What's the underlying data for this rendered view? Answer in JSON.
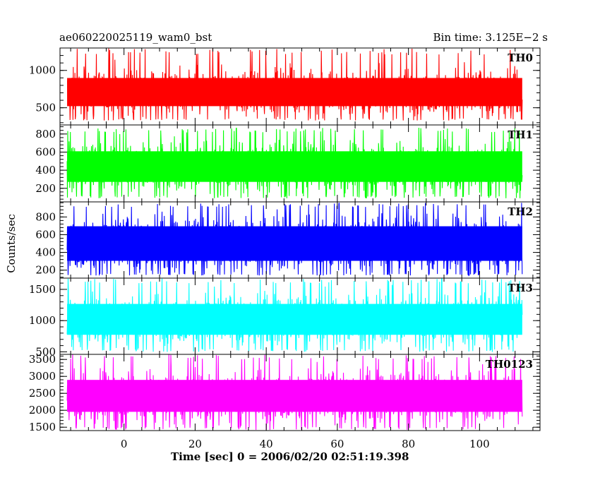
{
  "header": {
    "title_left": "ae060220025119_wam0_bst",
    "title_right": "Bin time: 3.125E−2 s"
  },
  "chart_data": {
    "type": "line",
    "xlabel": "Time [sec] 0 = 2006/02/20 02:51:19.398",
    "ylabel": "Counts/sec",
    "xlim": [
      -18,
      117
    ],
    "x_data_range": [
      -16,
      112
    ],
    "x_ticks": [
      0,
      20,
      40,
      60,
      80,
      100
    ],
    "panels": [
      {
        "name": "TH0",
        "color": "#ff0000",
        "ylim": [
          270,
          1300
        ],
        "yticks": [
          500,
          1000
        ],
        "band_min": 330,
        "band_max": 1300,
        "typical_low": 420,
        "typical_high": 1000
      },
      {
        "name": "TH1",
        "color": "#00ff00",
        "ylim": [
          50,
          900
        ],
        "yticks": [
          200,
          400,
          600,
          800
        ],
        "band_min": 90,
        "band_max": 870,
        "typical_low": 180,
        "typical_high": 700
      },
      {
        "name": "TH2",
        "color": "#0000ff",
        "ylim": [
          110,
          970
        ],
        "yticks": [
          200,
          400,
          600,
          800
        ],
        "band_min": 140,
        "band_max": 960,
        "typical_low": 200,
        "typical_high": 800
      },
      {
        "name": "TH3",
        "color": "#00ffff",
        "ylim": [
          460,
          1680
        ],
        "yticks": [
          500,
          1000,
          1500
        ],
        "band_min": 500,
        "band_max": 1680,
        "typical_low": 640,
        "typical_high": 1400
      },
      {
        "name": "TH0123",
        "color": "#ff00ff",
        "ylim": [
          1400,
          3650
        ],
        "yticks": [
          1500,
          2000,
          2500,
          3000,
          3500
        ],
        "band_min": 1420,
        "band_max": 3650,
        "typical_low": 1700,
        "typical_high": 3150
      }
    ]
  }
}
